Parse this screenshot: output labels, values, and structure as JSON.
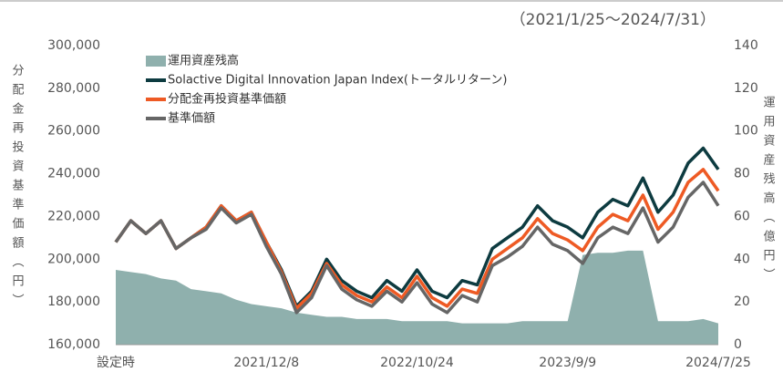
{
  "chart_data": {
    "type": "line",
    "subtitle": "（2021/1/25～2024/7/31）",
    "y_label": "分配金再投資基準価額（円）",
    "y2_label": "運用資産残高（億円）",
    "categories": [
      "設定時",
      null,
      null,
      null,
      null,
      null,
      null,
      null,
      null,
      null,
      "2021/12/8",
      null,
      null,
      null,
      null,
      null,
      null,
      null,
      null,
      null,
      "2022/10/24",
      null,
      null,
      null,
      null,
      null,
      null,
      null,
      null,
      null,
      "2023/9/9",
      null,
      null,
      null,
      null,
      null,
      null,
      null,
      null,
      null,
      "2024/7/25"
    ],
    "ylim": [
      160000,
      300000
    ],
    "yticks": [
      {
        "value": 160000,
        "label": "160,000"
      },
      {
        "value": 180000,
        "label": "180,000"
      },
      {
        "value": 200000,
        "label": "200,000"
      },
      {
        "value": 220000,
        "label": "220,000"
      },
      {
        "value": 240000,
        "label": "240,000"
      },
      {
        "value": 260000,
        "label": "260,000"
      },
      {
        "value": 280000,
        "label": "280,000"
      },
      {
        "value": 300000,
        "label": "300,000"
      }
    ],
    "y2lim": [
      0,
      140
    ],
    "y2ticks": [
      0,
      20,
      40,
      60,
      80,
      100,
      120,
      140
    ],
    "grid": false,
    "legend": "top-left",
    "series": [
      {
        "name": "運用資産残高",
        "type": "area",
        "axis": "y2",
        "color": "#8fb0ad",
        "values": [
          35,
          34,
          33,
          31,
          30,
          26,
          25,
          24,
          21,
          19,
          18,
          17,
          15,
          14,
          13,
          13,
          12,
          12,
          12,
          11,
          11,
          11,
          11,
          10,
          10,
          10,
          10,
          11,
          11,
          11,
          11,
          42,
          43,
          43,
          44,
          44,
          11,
          11,
          11,
          12,
          10
        ]
      },
      {
        "name": "Solactive Digital Innovation Japan Index(トータルリターン)",
        "color": "#0d3b40",
        "values": [
          208000,
          218000,
          212000,
          218000,
          205000,
          210000,
          215000,
          225000,
          218000,
          222000,
          208000,
          195000,
          178000,
          185000,
          200000,
          190000,
          185000,
          182000,
          190000,
          185000,
          195000,
          185000,
          182000,
          190000,
          188000,
          205000,
          210000,
          215000,
          225000,
          218000,
          215000,
          210000,
          222000,
          228000,
          225000,
          238000,
          222000,
          230000,
          245000,
          252000,
          242000
        ]
      },
      {
        "name": "分配金再投資基準価額",
        "color": "#ee5a24",
        "values": [
          208000,
          218000,
          212000,
          218000,
          205000,
          210000,
          215000,
          225000,
          218000,
          222000,
          208000,
          194000,
          177000,
          184000,
          198000,
          188000,
          183000,
          180000,
          187000,
          182000,
          192000,
          182000,
          178000,
          186000,
          184000,
          200000,
          205000,
          210000,
          219000,
          212000,
          209000,
          204000,
          215000,
          221000,
          218000,
          230000,
          214000,
          222000,
          236000,
          242000,
          232000
        ]
      },
      {
        "name": "基準価額",
        "color": "#666666",
        "values": [
          208000,
          218000,
          212000,
          218000,
          205000,
          210000,
          214000,
          224000,
          217000,
          221000,
          206000,
          193000,
          175000,
          182000,
          197000,
          186000,
          181000,
          178000,
          185000,
          180000,
          189000,
          179000,
          175000,
          183000,
          180000,
          197000,
          201000,
          206000,
          215000,
          207000,
          204000,
          198000,
          210000,
          215000,
          212000,
          224000,
          208000,
          215000,
          229000,
          236000,
          225000
        ]
      }
    ]
  }
}
